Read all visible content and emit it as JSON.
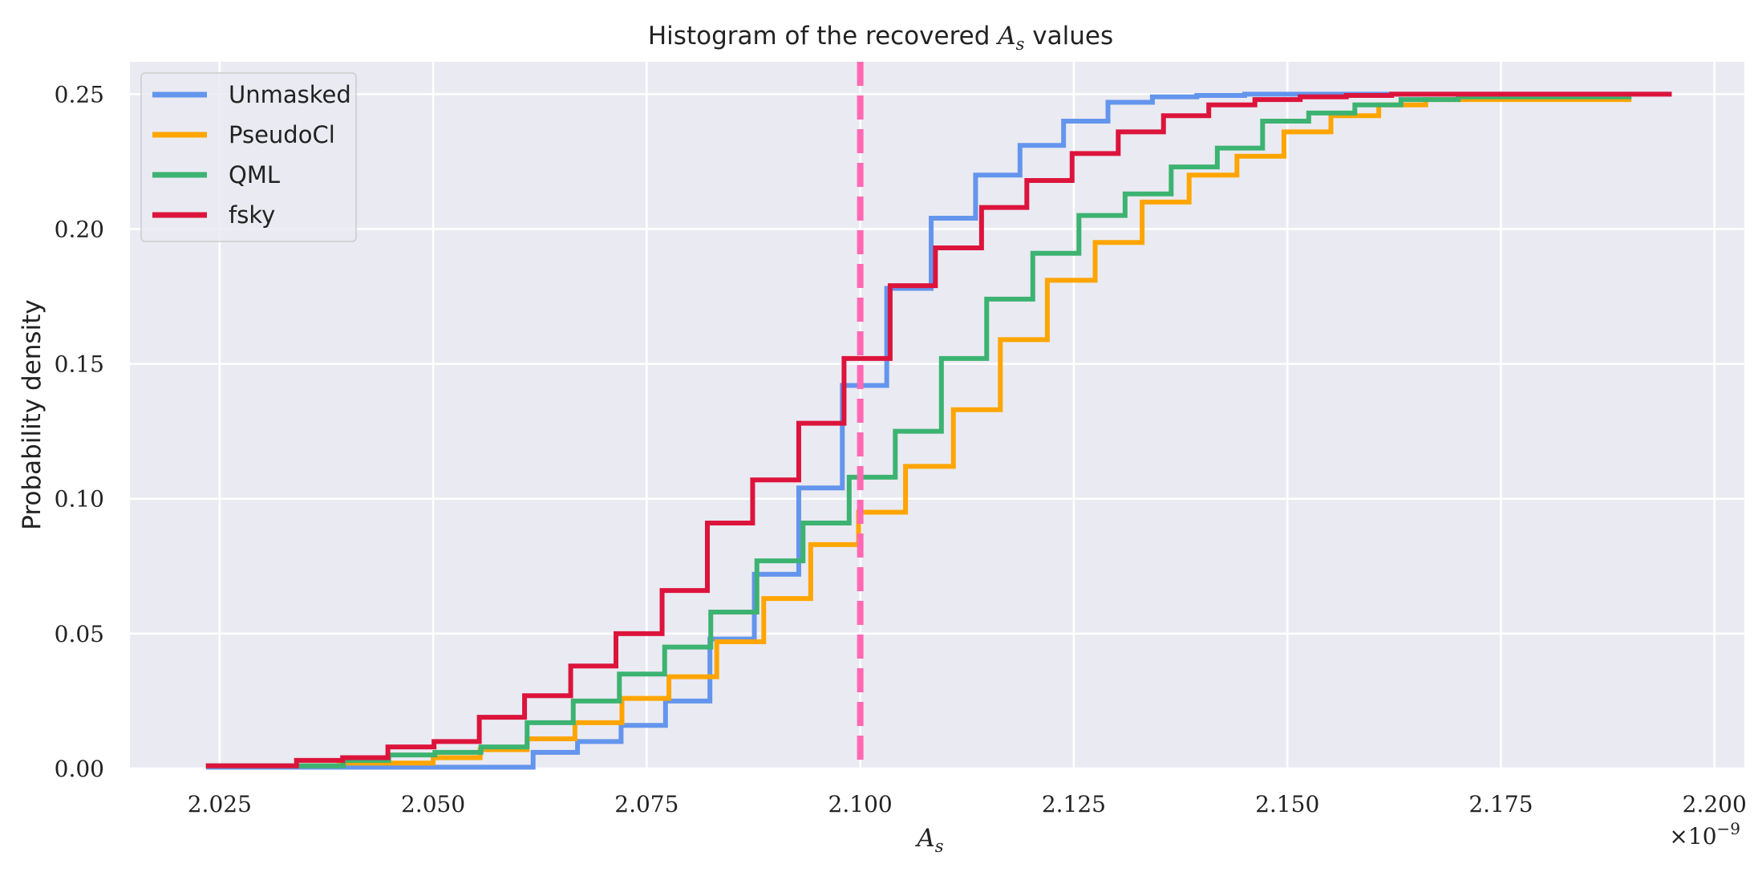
{
  "chart_data": {
    "type": "line",
    "subtype": "step-histogram-cumulative",
    "title": "Histogram of the recovered A_s values",
    "title_parts": {
      "prefix": "Histogram of the recovered ",
      "symbol": "A",
      "subscript": "s",
      "suffix": " values"
    },
    "xlabel": "A_s",
    "xlabel_parts": {
      "symbol": "A",
      "subscript": "s"
    },
    "ylabel": "Probability density",
    "offset_label": "×10−9",
    "offset_parts": {
      "base": "×10",
      "exp": "−9"
    },
    "xlim": [
      2.0145,
      2.2035
    ],
    "ylim": [
      0,
      0.262
    ],
    "xticks": [
      2.025,
      2.05,
      2.075,
      2.1,
      2.125,
      2.15,
      2.175,
      2.2
    ],
    "xtick_labels": [
      "2.025",
      "2.050",
      "2.075",
      "2.100",
      "2.125",
      "2.150",
      "2.175",
      "2.200"
    ],
    "yticks": [
      0,
      0.05,
      0.1,
      0.15,
      0.2,
      0.25
    ],
    "ytick_labels": [
      "0.00",
      "0.05",
      "0.10",
      "0.15",
      "0.20",
      "0.25"
    ],
    "grid": true,
    "legend_position": "top-left",
    "reference_line": {
      "x": 2.1,
      "color": "#ff69b4",
      "style": "dashed"
    },
    "series": [
      {
        "name": "Unmasked",
        "color": "#6495ed",
        "x": [
          2.0234,
          2.0617,
          2.0669,
          2.072,
          2.0772,
          2.0824,
          2.0876,
          2.0928,
          2.0979,
          2.1031,
          2.1083,
          2.1135,
          2.1187,
          2.1238,
          2.129,
          2.1342,
          2.1394,
          2.145,
          2.195
        ],
        "y": [
          0.0005,
          0.006,
          0.01,
          0.016,
          0.025,
          0.048,
          0.072,
          0.104,
          0.142,
          0.178,
          0.204,
          0.22,
          0.231,
          0.24,
          0.247,
          0.249,
          0.2495,
          0.25,
          0.25
        ]
      },
      {
        "name": "PseudoCl",
        "color": "#ffa500",
        "x": [
          2.0234,
          2.039,
          2.05,
          2.0555,
          2.061,
          2.0666,
          2.0721,
          2.0776,
          2.0832,
          2.0887,
          2.0942,
          2.0998,
          2.1053,
          2.1109,
          2.1164,
          2.1219,
          2.1275,
          2.133,
          2.1385,
          2.1441,
          2.1496,
          2.1551,
          2.1607,
          2.1662,
          2.19
        ],
        "y": [
          0.001,
          0.002,
          0.004,
          0.007,
          0.011,
          0.017,
          0.026,
          0.034,
          0.047,
          0.063,
          0.083,
          0.095,
          0.112,
          0.133,
          0.159,
          0.181,
          0.195,
          0.21,
          0.22,
          0.227,
          0.236,
          0.242,
          0.246,
          0.248,
          0.249
        ]
      },
      {
        "name": "QML",
        "color": "#3cb371",
        "x": [
          2.0234,
          2.0395,
          2.0448,
          2.0502,
          2.0556,
          2.061,
          2.0664,
          2.0718,
          2.0771,
          2.0825,
          2.0879,
          2.0933,
          2.0987,
          2.1041,
          2.1095,
          2.1148,
          2.1202,
          2.1256,
          2.131,
          2.1364,
          2.1418,
          2.1471,
          2.1525,
          2.1579,
          2.1633,
          2.17,
          2.19
        ],
        "y": [
          0.001,
          0.003,
          0.005,
          0.006,
          0.008,
          0.017,
          0.025,
          0.035,
          0.045,
          0.058,
          0.077,
          0.091,
          0.108,
          0.125,
          0.152,
          0.174,
          0.191,
          0.205,
          0.213,
          0.223,
          0.23,
          0.24,
          0.243,
          0.246,
          0.248,
          0.249,
          0.25
        ]
      },
      {
        "name": "fsky",
        "color": "#dc143c",
        "x": [
          2.0234,
          2.034,
          2.0394,
          2.0447,
          2.0501,
          2.0554,
          2.0607,
          2.0661,
          2.0714,
          2.0768,
          2.0821,
          2.0874,
          2.0928,
          2.0981,
          2.1035,
          2.1088,
          2.1142,
          2.1195,
          2.1248,
          2.1302,
          2.1355,
          2.1408,
          2.1462,
          2.1515,
          2.1569,
          2.1622,
          2.17,
          2.195
        ],
        "y": [
          0.001,
          0.003,
          0.004,
          0.008,
          0.01,
          0.019,
          0.027,
          0.038,
          0.05,
          0.066,
          0.091,
          0.107,
          0.128,
          0.152,
          0.179,
          0.193,
          0.208,
          0.218,
          0.228,
          0.236,
          0.242,
          0.246,
          0.248,
          0.249,
          0.2495,
          0.25,
          0.25,
          0.25
        ]
      }
    ]
  }
}
